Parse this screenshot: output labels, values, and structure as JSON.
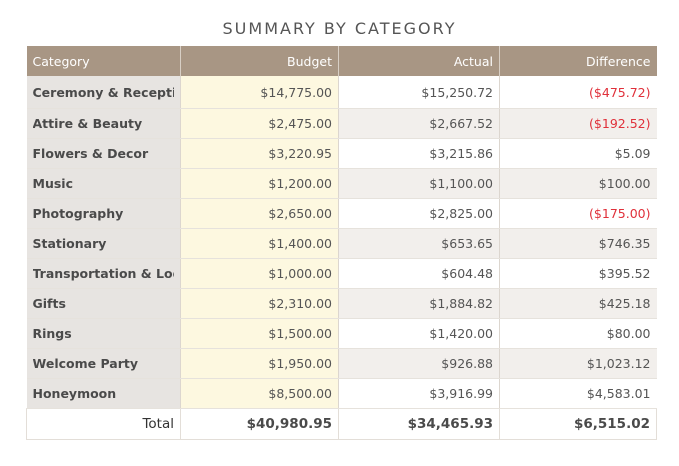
{
  "title": "SUMMARY BY CATEGORY",
  "headers": {
    "category": "Category",
    "budget": "Budget",
    "actual": "Actual",
    "difference": "Difference"
  },
  "rows": [
    {
      "category": "Ceremony & Reception",
      "budget": "$14,775.00",
      "actual": "$15,250.72",
      "difference": "($475.72)",
      "negative": true
    },
    {
      "category": "Attire & Beauty",
      "budget": "$2,475.00",
      "actual": "$2,667.52",
      "difference": "($192.52)",
      "negative": true
    },
    {
      "category": "Flowers & Decor",
      "budget": "$3,220.95",
      "actual": "$3,215.86",
      "difference": "$5.09",
      "negative": false
    },
    {
      "category": "Music",
      "budget": "$1,200.00",
      "actual": "$1,100.00",
      "difference": "$100.00",
      "negative": false
    },
    {
      "category": "Photography",
      "budget": "$2,650.00",
      "actual": "$2,825.00",
      "difference": "($175.00)",
      "negative": true
    },
    {
      "category": "Stationary",
      "budget": "$1,400.00",
      "actual": "$653.65",
      "difference": "$746.35",
      "negative": false
    },
    {
      "category": "Transportation & Lodging",
      "budget": "$1,000.00",
      "actual": "$604.48",
      "difference": "$395.52",
      "negative": false
    },
    {
      "category": "Gifts",
      "budget": "$2,310.00",
      "actual": "$1,884.82",
      "difference": "$425.18",
      "negative": false
    },
    {
      "category": "Rings",
      "budget": "$1,500.00",
      "actual": "$1,420.00",
      "difference": "$80.00",
      "negative": false
    },
    {
      "category": "Welcome Party",
      "budget": "$1,950.00",
      "actual": "$926.88",
      "difference": "$1,023.12",
      "negative": false
    },
    {
      "category": "Honeymoon",
      "budget": "$8,500.00",
      "actual": "$3,916.99",
      "difference": "$4,583.01",
      "negative": false
    }
  ],
  "totals": {
    "label": "Total",
    "budget": "$40,980.95",
    "actual": "$34,465.93",
    "difference": "$6,515.02"
  },
  "colors": {
    "header_bg": "#a89684",
    "category_bg": "#e7e4e1",
    "budget_bg": "#fdf8e0",
    "negative": "#e0303a"
  }
}
